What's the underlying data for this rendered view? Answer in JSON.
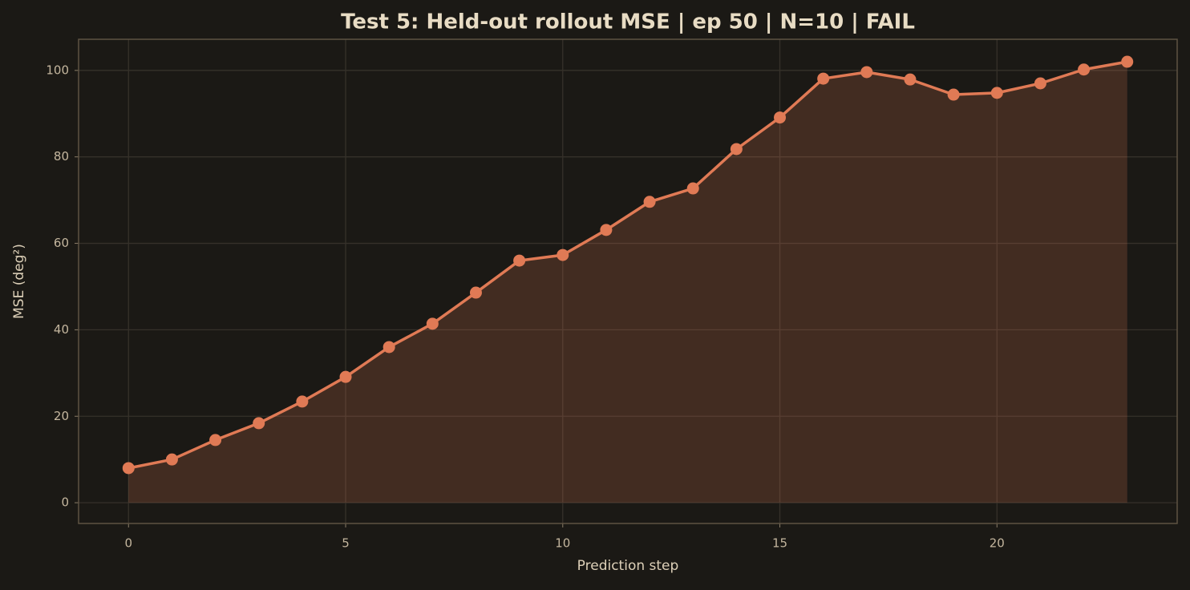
{
  "chart_data": {
    "type": "line",
    "title": "Test 5: Held-out rollout MSE  |  ep 50  |  N=10  |  FAIL",
    "xlabel": "Prediction step",
    "ylabel": "MSE (deg²)",
    "x": [
      0,
      1,
      2,
      3,
      4,
      5,
      6,
      7,
      8,
      9,
      10,
      11,
      12,
      13,
      14,
      15,
      16,
      17,
      18,
      19,
      20,
      21,
      22,
      23
    ],
    "values": [
      8.0,
      10.0,
      14.5,
      18.4,
      23.4,
      29.1,
      36.0,
      41.4,
      48.6,
      56.0,
      57.3,
      63.1,
      69.6,
      72.7,
      81.8,
      89.1,
      98.1,
      99.6,
      97.9,
      94.4,
      94.8,
      97.0,
      100.2,
      102.0
    ],
    "color": "#e07a55",
    "xlim": [
      -1.15,
      24.15
    ],
    "ylim": [
      -4.8,
      107.2
    ],
    "xticks": [
      0,
      5,
      10,
      15,
      20
    ],
    "yticks": [
      0,
      20,
      40,
      60,
      80,
      100
    ],
    "grid": true,
    "fill": true
  }
}
